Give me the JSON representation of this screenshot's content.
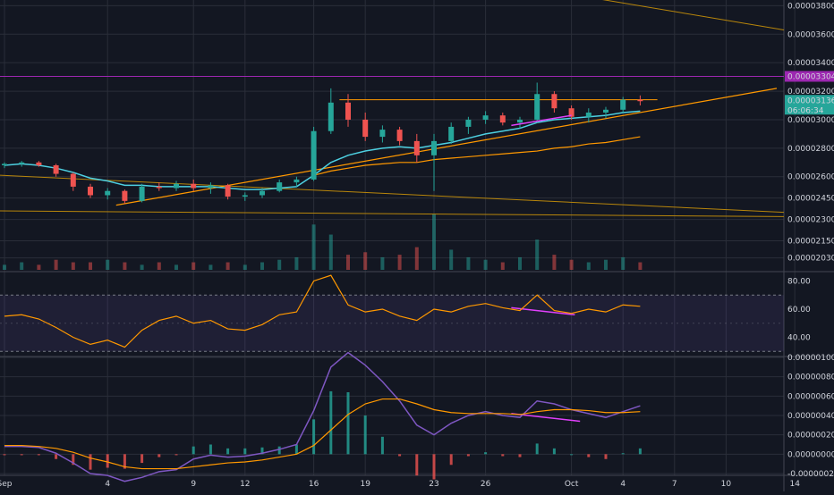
{
  "chart_data": {
    "type": "candlestick",
    "background": "#131722",
    "colors": {
      "up": "#26a69a",
      "down": "#ef5350",
      "ema": "#4dd0e1",
      "trend": "#ff9800",
      "channel": "#b8860b",
      "purple_line": "#9c27b0",
      "divergence": "#e040fb",
      "rsi": "#ff9800",
      "macd": "#7e57c2",
      "signal": "#ff9800",
      "grid": "#2a2e39",
      "axis_text": "#d1d4dc"
    },
    "x_labels": [
      {
        "label": "Sep",
        "i": 0
      },
      {
        "label": "4",
        "i": 6
      },
      {
        "label": "9",
        "i": 11
      },
      {
        "label": "12",
        "i": 14
      },
      {
        "label": "16",
        "i": 18
      },
      {
        "label": "19",
        "i": 21
      },
      {
        "label": "23",
        "i": 25
      },
      {
        "label": "26",
        "i": 28
      },
      {
        "label": "Oct",
        "i": 33
      },
      {
        "label": "4",
        "i": 36
      },
      {
        "label": "7",
        "i": 39
      },
      {
        "label": "10",
        "i": 42
      },
      {
        "label": "14",
        "i": 46
      }
    ],
    "price": {
      "ylim": [
        1.94e-05,
        3.84e-05
      ],
      "ticks": [
        "0.00003800",
        "0.00003600",
        "0.00003400",
        "0.00003200",
        "0.00003000",
        "0.00002800",
        "0.00002600",
        "0.00002450",
        "0.00002300",
        "0.00002150",
        "0.00002030"
      ],
      "tick_values": [
        3.8e-05,
        3.6e-05,
        3.4e-05,
        3.2e-05,
        3e-05,
        2.8e-05,
        2.6e-05,
        2.45e-05,
        2.3e-05,
        2.15e-05,
        2.03e-05
      ],
      "horizontal_line": 3.304e-05,
      "price_label": "0.00003304",
      "last_label": "0.00003136",
      "countdown": "06:06:34",
      "candles": [
        [
          2.68,
          2.7,
          2.66,
          2.69
        ],
        [
          2.69,
          2.71,
          2.67,
          2.7
        ],
        [
          2.7,
          2.71,
          2.67,
          2.68
        ],
        [
          2.68,
          2.69,
          2.6,
          2.62
        ],
        [
          2.62,
          2.63,
          2.5,
          2.53
        ],
        [
          2.53,
          2.55,
          2.45,
          2.47
        ],
        [
          2.47,
          2.52,
          2.44,
          2.5
        ],
        [
          2.5,
          2.51,
          2.41,
          2.43
        ],
        [
          2.43,
          2.55,
          2.42,
          2.53
        ],
        [
          2.53,
          2.56,
          2.5,
          2.52
        ],
        [
          2.52,
          2.57,
          2.5,
          2.55
        ],
        [
          2.55,
          2.58,
          2.5,
          2.52
        ],
        [
          2.52,
          2.56,
          2.48,
          2.54
        ],
        [
          2.54,
          2.55,
          2.44,
          2.46
        ],
        [
          2.46,
          2.49,
          2.43,
          2.47
        ],
        [
          2.47,
          2.52,
          2.45,
          2.5
        ],
        [
          2.5,
          2.58,
          2.49,
          2.56
        ],
        [
          2.56,
          2.6,
          2.53,
          2.58
        ],
        [
          2.58,
          2.95,
          2.57,
          2.92
        ],
        [
          2.92,
          3.22,
          2.9,
          3.12
        ],
        [
          3.12,
          3.18,
          2.95,
          3.0
        ],
        [
          3.0,
          3.05,
          2.85,
          2.88
        ],
        [
          2.88,
          2.96,
          2.84,
          2.93
        ],
        [
          2.93,
          2.95,
          2.82,
          2.85
        ],
        [
          2.85,
          2.9,
          2.7,
          2.75
        ],
        [
          2.75,
          2.9,
          2.5,
          2.85
        ],
        [
          2.85,
          2.98,
          2.83,
          2.95
        ],
        [
          2.95,
          3.02,
          2.9,
          3.0
        ],
        [
          3.0,
          3.06,
          2.97,
          3.03
        ],
        [
          3.03,
          3.05,
          2.96,
          2.98
        ],
        [
          2.98,
          3.02,
          2.94,
          3.0
        ],
        [
          3.0,
          3.26,
          2.98,
          3.18
        ],
        [
          3.18,
          3.2,
          3.05,
          3.08
        ],
        [
          3.08,
          3.1,
          3.0,
          3.02
        ],
        [
          3.02,
          3.08,
          2.98,
          3.05
        ],
        [
          3.05,
          3.09,
          3.01,
          3.07
        ],
        [
          3.07,
          3.16,
          3.05,
          3.14
        ],
        [
          3.14,
          3.17,
          3.1,
          3.13
        ]
      ],
      "volume": [
        2,
        3,
        2,
        4,
        3,
        3,
        4,
        3,
        2,
        3,
        2,
        3,
        2,
        3,
        2,
        3,
        4,
        5,
        18,
        14,
        6,
        7,
        5,
        6,
        9,
        22,
        8,
        5,
        4,
        3,
        5,
        12,
        6,
        4,
        3,
        4,
        5,
        3
      ],
      "ema": [
        2.68,
        2.69,
        2.68,
        2.66,
        2.63,
        2.59,
        2.57,
        2.54,
        2.54,
        2.53,
        2.53,
        2.53,
        2.53,
        2.52,
        2.51,
        2.51,
        2.52,
        2.53,
        2.61,
        2.7,
        2.75,
        2.78,
        2.8,
        2.81,
        2.8,
        2.82,
        2.84,
        2.87,
        2.9,
        2.92,
        2.94,
        2.98,
        3.0,
        3.01,
        3.02,
        3.03,
        3.05,
        3.06
      ],
      "ma_long": [
        null,
        null,
        null,
        null,
        null,
        null,
        null,
        null,
        null,
        null,
        null,
        null,
        null,
        null,
        null,
        null,
        null,
        null,
        2.61,
        2.64,
        2.66,
        2.68,
        2.69,
        2.7,
        2.7,
        2.72,
        2.73,
        2.74,
        2.75,
        2.76,
        2.77,
        2.78,
        2.8,
        2.81,
        2.83,
        2.84,
        2.86,
        2.88
      ]
    },
    "rsi": {
      "ylim": [
        27,
        86
      ],
      "ticks": [
        "80.00",
        "60.00",
        "40.00"
      ],
      "tick_values": [
        80,
        60,
        40
      ],
      "upper": 70,
      "lower": 30,
      "values": [
        55,
        56,
        53,
        47,
        40,
        35,
        38,
        33,
        45,
        52,
        55,
        50,
        52,
        46,
        45,
        49,
        56,
        58,
        80,
        84,
        63,
        58,
        60,
        55,
        52,
        60,
        58,
        62,
        64,
        61,
        59,
        70,
        59,
        57,
        60,
        58,
        63,
        62
      ]
    },
    "macd": {
      "ylim": [
        -2e-07,
        1e-06
      ],
      "ticks": [
        "0.00000100",
        "0.00000080",
        "0.00000060",
        "0.00000040",
        "0.00000020",
        "0.00000000",
        "-0.00000020"
      ],
      "tick_values": [
        1e-06,
        8e-07,
        6e-07,
        4e-07,
        2e-07,
        0,
        -2e-07
      ],
      "macd": [
        0.08,
        0.08,
        0.07,
        0.01,
        -0.09,
        -0.2,
        -0.22,
        -0.28,
        -0.24,
        -0.18,
        -0.16,
        -0.05,
        -0.01,
        -0.03,
        -0.02,
        0.01,
        0.05,
        0.1,
        0.45,
        0.9,
        1.05,
        0.92,
        0.75,
        0.55,
        0.3,
        0.2,
        0.32,
        0.4,
        0.44,
        0.4,
        0.38,
        0.55,
        0.52,
        0.46,
        0.42,
        0.38,
        0.44,
        0.5
      ],
      "signal": [
        0.09,
        0.09,
        0.08,
        0.06,
        0.02,
        -0.04,
        -0.08,
        -0.13,
        -0.15,
        -0.15,
        -0.15,
        -0.13,
        -0.11,
        -0.09,
        -0.08,
        -0.06,
        -0.03,
        0.0,
        0.09,
        0.25,
        0.41,
        0.52,
        0.57,
        0.57,
        0.52,
        0.46,
        0.43,
        0.42,
        0.42,
        0.42,
        0.41,
        0.44,
        0.46,
        0.46,
        0.45,
        0.43,
        0.43,
        0.44
      ]
    }
  }
}
